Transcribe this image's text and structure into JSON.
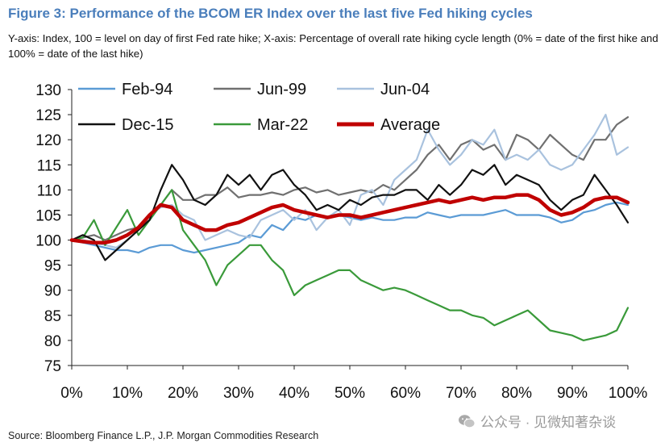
{
  "title": "Figure 3: Performance of the BCOM ER Index over the last five Fed hiking cycles",
  "subtitle": "Y-axis: Index, 100 = level on day of first Fed rate hike; X-axis: Percentage of overall rate hiking cycle length (0% = date of the first hike and 100% = date of the last hike)",
  "source": "Source: Bloomberg Finance L.P., J.P. Morgan Commodities Research",
  "watermark": "公众号 · 见微知著杂谈",
  "colors": {
    "title": "#4a7ebb",
    "Feb-94": "#5b9bd5",
    "Jun-99": "#707070",
    "Jun-04": "#a9c2de",
    "Dec-15": "#111111",
    "Mar-22": "#3a9a3a",
    "Average": "#c00000"
  },
  "chart_data": {
    "type": "line",
    "xlabel": "",
    "ylabel": "",
    "xlim": [
      0,
      100
    ],
    "ylim": [
      75,
      130
    ],
    "x_ticks": [
      "0%",
      "10%",
      "20%",
      "30%",
      "40%",
      "50%",
      "60%",
      "70%",
      "80%",
      "90%",
      "100%"
    ],
    "y_ticks": [
      "75",
      "80",
      "85",
      "90",
      "95",
      "100",
      "105",
      "110",
      "115",
      "120",
      "125",
      "130"
    ],
    "legend": "top",
    "grid": false,
    "x": [
      0,
      2,
      4,
      6,
      8,
      10,
      12,
      14,
      16,
      18,
      20,
      22,
      24,
      26,
      28,
      30,
      32,
      34,
      36,
      38,
      40,
      42,
      44,
      46,
      48,
      50,
      52,
      54,
      56,
      58,
      60,
      62,
      64,
      66,
      68,
      70,
      72,
      74,
      76,
      78,
      80,
      82,
      84,
      86,
      88,
      90,
      92,
      94,
      96,
      98,
      100
    ],
    "series": [
      {
        "name": "Feb-94",
        "values": [
          100,
          99.5,
          99,
          98.5,
          98,
          98,
          97.5,
          98.5,
          99,
          99,
          98,
          97.5,
          98,
          98.5,
          99,
          99.5,
          101,
          100.5,
          103,
          102,
          104.5,
          104,
          105,
          104.5,
          105,
          104.5,
          104,
          104.5,
          104,
          104,
          104.5,
          104.5,
          105.5,
          105,
          104.5,
          105,
          105,
          105,
          105.5,
          106,
          105,
          105,
          105,
          104.5,
          103.5,
          104,
          105.5,
          106,
          107,
          107.5,
          107
        ]
      },
      {
        "name": "Jun-99",
        "values": [
          100,
          100.5,
          101,
          100,
          101,
          102,
          102.5,
          104,
          107,
          110,
          108,
          108,
          109,
          109,
          110.5,
          108.5,
          109,
          109,
          109.5,
          109,
          110,
          110.5,
          109.5,
          110,
          109,
          109.5,
          110,
          109.5,
          111,
          110,
          112,
          114,
          117,
          119,
          116,
          119,
          120,
          118,
          119,
          116,
          121,
          120,
          118,
          121,
          119,
          117,
          116,
          120,
          120,
          123,
          124.5
        ]
      },
      {
        "name": "Jun-04",
        "values": [
          100,
          100,
          99.5,
          99,
          98.5,
          100,
          102,
          105,
          106.5,
          107,
          105,
          104,
          100,
          101,
          102,
          101,
          100.5,
          104,
          105,
          106,
          104,
          106,
          102,
          104.5,
          106,
          103,
          109,
          110,
          107,
          112,
          114,
          116,
          122,
          118,
          115,
          117,
          120,
          119,
          122,
          116,
          117,
          116,
          118,
          115,
          114,
          115,
          118,
          121,
          125,
          117,
          118.5
        ]
      },
      {
        "name": "Dec-15",
        "values": [
          100,
          101,
          100,
          96,
          98,
          100,
          102,
          104,
          110,
          115,
          112,
          108,
          107,
          109,
          113,
          111,
          113,
          110,
          113,
          114,
          111,
          109,
          106,
          107,
          106,
          108,
          107,
          108.5,
          109,
          109,
          110,
          110,
          108,
          111,
          109,
          111,
          114,
          113,
          115,
          111,
          113,
          112,
          111,
          108,
          106,
          108,
          109,
          113,
          110,
          107,
          103.5
        ]
      },
      {
        "name": "Mar-22",
        "values": [
          100,
          100.5,
          104,
          99,
          102.5,
          106,
          101,
          104,
          107,
          110,
          102,
          99,
          96,
          91,
          95,
          97,
          99,
          99,
          96,
          94,
          89,
          91,
          92,
          93,
          94,
          94,
          92,
          91,
          90,
          90.5,
          90,
          89,
          88,
          87,
          86,
          86,
          85,
          84.5,
          83,
          84,
          85,
          86,
          84,
          82,
          81.5,
          81,
          80,
          80.5,
          81,
          82,
          86.5
        ]
      },
      {
        "name": "Average",
        "values": [
          100,
          99.7,
          99.5,
          99.5,
          100,
          101,
          102.5,
          105,
          107,
          106.5,
          104,
          103,
          102,
          102,
          103,
          103.5,
          104.5,
          105.5,
          106.5,
          107,
          106,
          105.5,
          105,
          104.5,
          105,
          105,
          104.5,
          105,
          105.5,
          106,
          106.5,
          107,
          107.5,
          108,
          107.5,
          108,
          108.5,
          108,
          108.5,
          108.5,
          109,
          109,
          108,
          106,
          105,
          105.5,
          106.5,
          108,
          108.5,
          108.5,
          107.5
        ]
      }
    ]
  }
}
